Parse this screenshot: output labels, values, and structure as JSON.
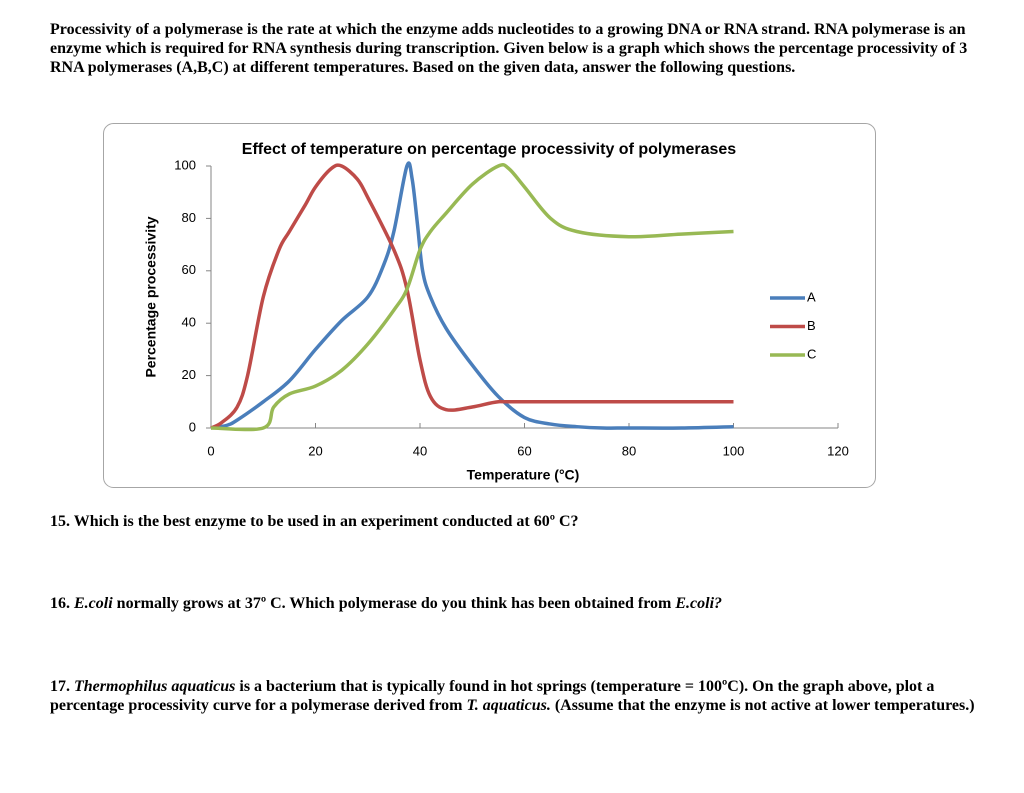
{
  "intro": "Processivity of a polymerase is the rate at which the enzyme adds nucleotides to a growing DNA or RNA strand.  RNA polymerase is an enzyme which is required for RNA synthesis during transcription.  Given below is a graph which shows the percentage processivity of 3 RNA polymerases (A,B,C) at different temperatures. Based on the given data, answer the following questions.",
  "chart_data": {
    "type": "line",
    "title": "Effect of temperature on percentage processivity of polymerases",
    "x_label": "Temperature (°C)",
    "y_label": "Percentage processivity",
    "xlim": [
      0,
      120
    ],
    "ylim": [
      0,
      100
    ],
    "xticks": [
      0,
      20,
      40,
      60,
      80,
      100,
      120
    ],
    "yticks": [
      0,
      20,
      40,
      60,
      80,
      100
    ],
    "grid": false,
    "legend": "right",
    "series": [
      {
        "name": "A",
        "color": "#4a7ebb",
        "x": [
          0,
          3,
          5,
          10,
          15,
          20,
          25,
          30,
          33,
          35,
          37.5,
          38.5,
          39.5,
          40.5,
          42,
          45,
          50,
          55,
          60,
          65,
          70,
          75,
          80,
          90,
          100
        ],
        "values": [
          0,
          1,
          3,
          10,
          18,
          30,
          41,
          50,
          62,
          75,
          100,
          95,
          78,
          60,
          50,
          38,
          24,
          12,
          4,
          1.5,
          0.5,
          0,
          0,
          0,
          0.5
        ]
      },
      {
        "name": "B",
        "color": "#be4b48",
        "x": [
          0,
          2,
          5,
          7,
          10,
          13,
          15,
          18,
          20,
          23,
          25,
          28,
          30,
          35,
          37.5,
          40,
          42,
          45,
          50,
          55,
          60,
          100
        ],
        "values": [
          0,
          2,
          8,
          20,
          50,
          68,
          75,
          85,
          92,
          99,
          100,
          95,
          88,
          68,
          53,
          26,
          12,
          7,
          8,
          10,
          10,
          10
        ]
      },
      {
        "name": "C",
        "color": "#98b954",
        "x": [
          0,
          10,
          12,
          15,
          20,
          25,
          30,
          35,
          37.5,
          40,
          42,
          45,
          50,
          55,
          57,
          60,
          65,
          70,
          80,
          90,
          100
        ],
        "values": [
          0,
          0,
          8,
          13,
          16,
          22,
          32,
          45,
          53,
          68,
          75,
          82,
          93,
          100,
          99,
          92,
          80,
          75,
          73,
          74,
          75
        ]
      }
    ]
  },
  "q15": "15. Which is the best enzyme to be used in an experiment conducted at 60º C?",
  "q16": [
    "16.  ",
    "E.coli",
    " normally grows at 37º C. Which polymerase do you think has been obtained from ",
    "E.coli?"
  ],
  "q17": [
    "17. ",
    "Thermophilus aquaticus",
    " is a bacterium that is typically found in hot springs (temperature = 100ºC). On the graph above, plot a percentage processivity curve for a polymerase derived from ",
    "T. aquaticus.",
    " (Assume that the enzyme is not active at lower temperatures.)"
  ]
}
